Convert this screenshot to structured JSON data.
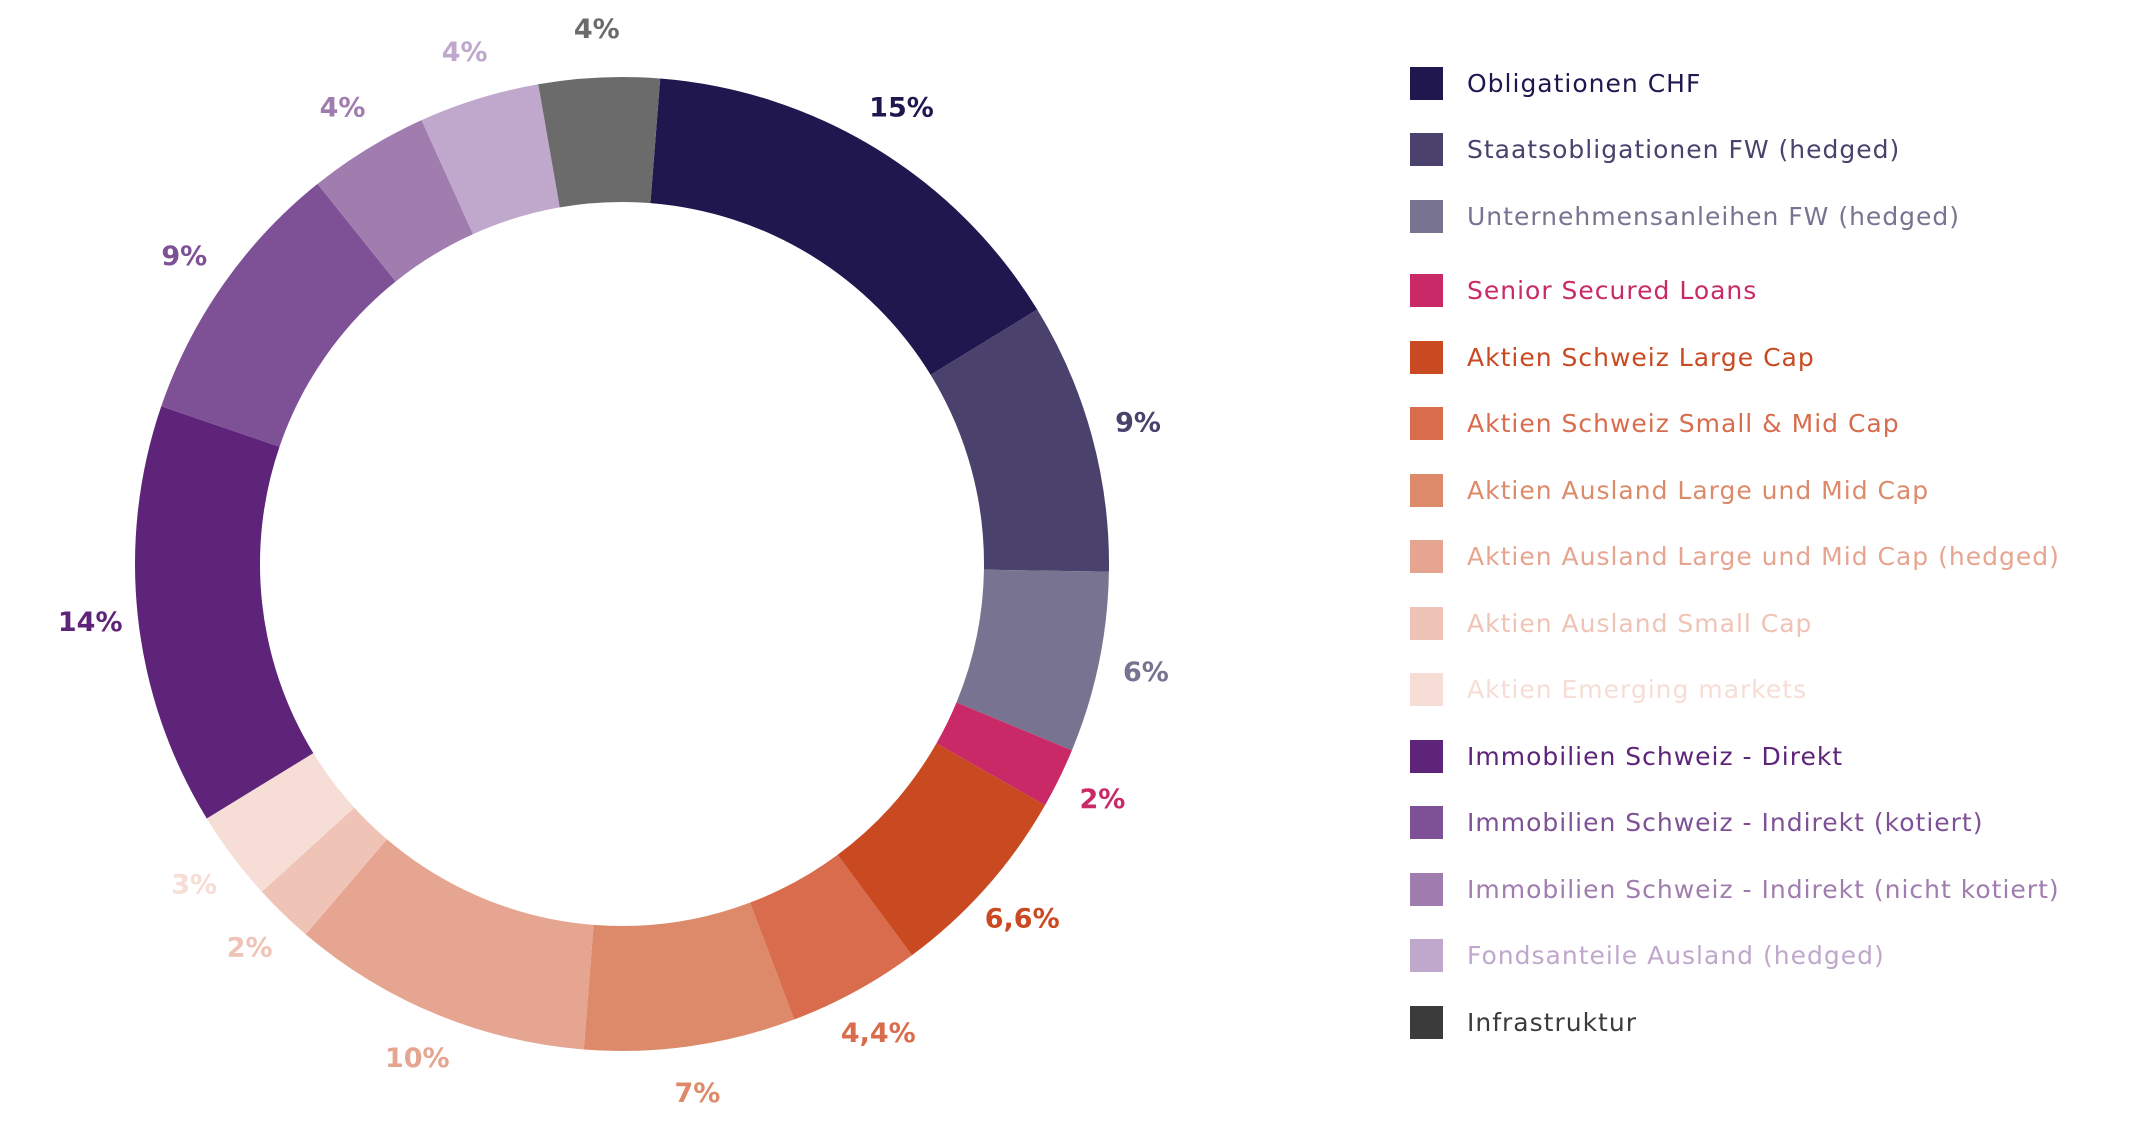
{
  "chart_data": {
    "type": "pie",
    "donut": true,
    "legend_position": "right",
    "slices": [
      {
        "label": "Obligationen CHF",
        "value": 15,
        "display": "15%",
        "color": "#21174f"
      },
      {
        "label": "Staatsobligationen FW (hedged)",
        "value": 9,
        "display": "9%",
        "color": "#4a416c"
      },
      {
        "label": "Unternehmensanleihen FW (hedged)",
        "value": 6,
        "display": "6%",
        "color": "#787391"
      },
      {
        "label": "Senior Secured Loans",
        "value": 2,
        "display": "2%",
        "color": "#c92a67"
      },
      {
        "label": "Aktien Schweiz Large Cap",
        "value": 6.6,
        "display": "6,6%",
        "color": "#c94921"
      },
      {
        "label": "Aktien Schweiz Small & Mid Cap",
        "value": 4.4,
        "display": "4,4%",
        "color": "#d96c4d"
      },
      {
        "label": "Aktien Ausland Large und Mid Cap",
        "value": 7,
        "display": "7%",
        "color": "#dc8a6a"
      },
      {
        "label": "Aktien Ausland Large und Mid Cap (hedged)",
        "value": 10,
        "display": "10%",
        "color": "#e6a590"
      },
      {
        "label": "Aktien Ausland Small Cap",
        "value": 2,
        "display": "2%",
        "color": "#efc3b6"
      },
      {
        "label": "Aktien Emerging markets",
        "value": 3,
        "display": "3%",
        "color": "#f6ddd5"
      },
      {
        "label": "Immobilien Schweiz - Direkt",
        "value": 14,
        "display": "14%",
        "color": "#5e247a"
      },
      {
        "label": "Immobilien Schweiz - Indirekt (kotiert)",
        "value": 9,
        "display": "9%",
        "color": "#7e5196"
      },
      {
        "label": "Immobilien Schweiz - Indirekt (nicht kotiert)",
        "value": 4,
        "display": "4%",
        "color": "#a07dae"
      },
      {
        "label": "Fondsanteile Ausland (hedged)",
        "value": 4,
        "display": "4%",
        "color": "#c0a8cc"
      },
      {
        "label": "Infrastruktur",
        "value": 4,
        "display": "4%",
        "color": "#6b6b6b"
      }
    ],
    "legend": [
      {
        "label": "Obligationen CHF",
        "swatch": "#21174f",
        "text_color": "#21174f"
      },
      {
        "label": "Staatsobligationen FW (hedged)",
        "swatch": "#4a416c",
        "text_color": "#4a416c"
      },
      {
        "label": "Unternehmensanleihen FW (hedged)",
        "swatch": "#787391",
        "text_color": "#787391"
      },
      {
        "label": "Senior Secured Loans",
        "swatch": "#c92a67",
        "text_color": "#c92a67"
      },
      {
        "label": "Aktien Schweiz Large Cap",
        "swatch": "#c94921",
        "text_color": "#c94921"
      },
      {
        "label": "Aktien Schweiz Small & Mid Cap",
        "swatch": "#d96c4d",
        "text_color": "#d96c4d"
      },
      {
        "label": "Aktien Ausland Large und Mid Cap",
        "swatch": "#dc8a6a",
        "text_color": "#dc8a6a"
      },
      {
        "label": "Aktien Ausland Large und Mid Cap (hedged)",
        "swatch": "#e6a590",
        "text_color": "#e6a590"
      },
      {
        "label": "Aktien Ausland Small Cap",
        "swatch": "#efc3b6",
        "text_color": "#efc3b6"
      },
      {
        "label": "Aktien Emerging markets",
        "swatch": "#f6ddd5",
        "text_color": "#f6ddd5"
      },
      {
        "label": "Immobilien Schweiz - Direkt",
        "swatch": "#5e247a",
        "text_color": "#5e247a"
      },
      {
        "label": "Immobilien Schweiz - Indirekt (kotiert)",
        "swatch": "#7e5196",
        "text_color": "#7e5196"
      },
      {
        "label": "Immobilien Schweiz - Indirekt (nicht kotiert)",
        "swatch": "#a07dae",
        "text_color": "#a07dae"
      },
      {
        "label": "Fondsanteile Ausland (hedged)",
        "swatch": "#c0a8cc",
        "text_color": "#c0a8cc"
      },
      {
        "label": "Infrastruktur",
        "swatch": "#3b3b3b",
        "text_color": "#3b3b3b"
      }
    ]
  }
}
